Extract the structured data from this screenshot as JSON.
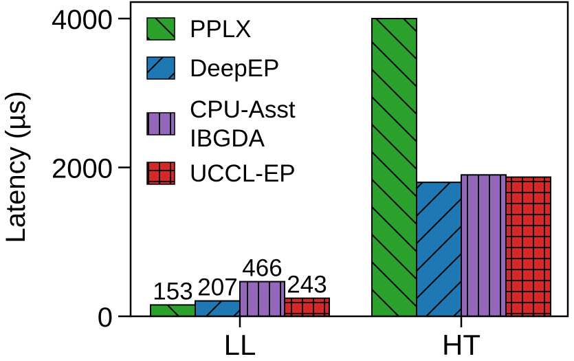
{
  "chart_data": {
    "type": "bar",
    "title": "",
    "xlabel": "",
    "ylabel": "Latency (µs)",
    "ylim": [
      0,
      4000
    ],
    "yticks": [
      0,
      2000,
      4000
    ],
    "categories": [
      "LL",
      "HT"
    ],
    "legend_position": "top-left",
    "series": [
      {
        "name": "PPLX",
        "color": "#2ca02c",
        "hatch": "backslash",
        "values": [
          153,
          4000
        ],
        "labels": [
          "153",
          ""
        ]
      },
      {
        "name": "DeepEP",
        "color": "#1f77b4",
        "hatch": "slash",
        "values": [
          207,
          1800
        ],
        "labels": [
          "207",
          ""
        ]
      },
      {
        "name": "CPU-Asst\nIBGDA",
        "color": "#9467bd",
        "hatch": "vertical",
        "values": [
          466,
          1900
        ],
        "labels": [
          "466",
          ""
        ]
      },
      {
        "name": "UCCL-EP",
        "color": "#d62728",
        "hatch": "grid",
        "values": [
          243,
          1870
        ],
        "labels": [
          "243",
          ""
        ]
      }
    ]
  }
}
